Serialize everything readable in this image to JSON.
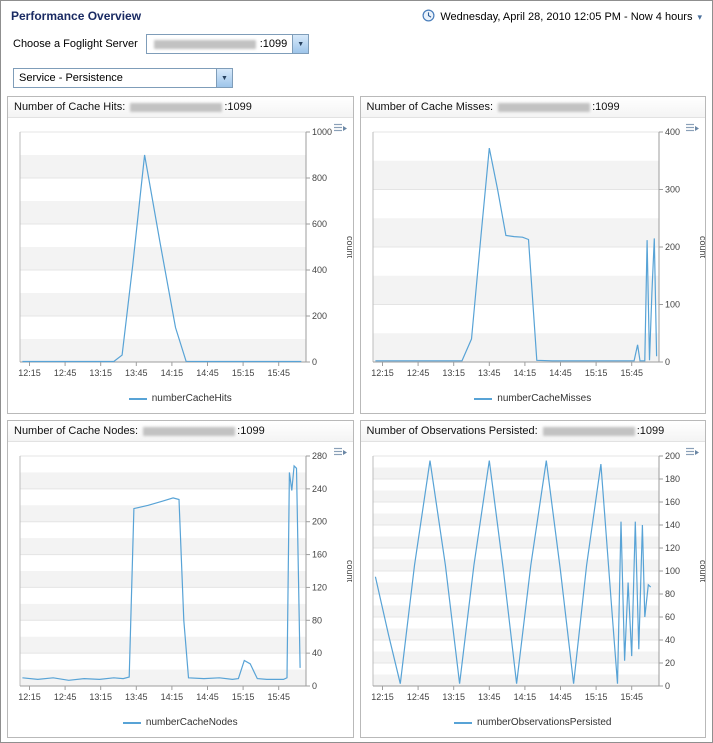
{
  "header": {
    "title": "Performance Overview",
    "time_range": "Wednesday, April 28, 2010 12:05 PM - Now 4 hours"
  },
  "server_selector": {
    "label": "Choose a Foglight Server",
    "value_suffix": ":1099"
  },
  "service_selector": {
    "value": "Service - Persistence"
  },
  "colors": {
    "line": "#58a3d6",
    "title": "#1a2b63"
  },
  "chart_data": [
    {
      "type": "line",
      "title_prefix": "Number of Cache Hits: ",
      "title_suffix": ":1099",
      "legend": "numberCacheHits",
      "ylabel": "count",
      "line_color": "#58a3d6",
      "x_domain": [
        727,
        968
      ],
      "y_domain": [
        0,
        1000
      ],
      "x_ticks": {
        "times": [
          735,
          765,
          795,
          825,
          855,
          885,
          915,
          945
        ],
        "labels": [
          "12:15",
          "12:45",
          "13:15",
          "13:45",
          "14:15",
          "14:45",
          "15:15",
          "15:45"
        ]
      },
      "y_ticks": [
        0,
        200,
        400,
        600,
        800,
        1000
      ],
      "points": [
        [
          729,
          2
        ],
        [
          745,
          2
        ],
        [
          762,
          2
        ],
        [
          778,
          2
        ],
        [
          795,
          2
        ],
        [
          806,
          2
        ],
        [
          813,
          30
        ],
        [
          822,
          420
        ],
        [
          832,
          900
        ],
        [
          845,
          520
        ],
        [
          858,
          150
        ],
        [
          867,
          3
        ],
        [
          880,
          2
        ],
        [
          895,
          2
        ],
        [
          910,
          2
        ],
        [
          925,
          2
        ],
        [
          945,
          2
        ],
        [
          964,
          2
        ]
      ]
    },
    {
      "type": "line",
      "title_prefix": "Number of Cache Misses: ",
      "title_suffix": ":1099",
      "legend": "numberCacheMisses",
      "ylabel": "count",
      "line_color": "#58a3d6",
      "x_domain": [
        727,
        968
      ],
      "y_domain": [
        0,
        400
      ],
      "x_ticks": {
        "times": [
          735,
          765,
          795,
          825,
          855,
          885,
          915,
          945
        ],
        "labels": [
          "12:15",
          "12:45",
          "13:15",
          "13:45",
          "14:15",
          "14:45",
          "15:15",
          "15:45"
        ]
      },
      "y_ticks": [
        0,
        100,
        200,
        300,
        400
      ],
      "points": [
        [
          729,
          2
        ],
        [
          750,
          2
        ],
        [
          770,
          2
        ],
        [
          790,
          2
        ],
        [
          802,
          2
        ],
        [
          810,
          40
        ],
        [
          818,
          220
        ],
        [
          825,
          372
        ],
        [
          832,
          300
        ],
        [
          839,
          220
        ],
        [
          846,
          218
        ],
        [
          853,
          217
        ],
        [
          858,
          213
        ],
        [
          865,
          3
        ],
        [
          878,
          2
        ],
        [
          892,
          2
        ],
        [
          906,
          2
        ],
        [
          920,
          2
        ],
        [
          934,
          2
        ],
        [
          943,
          2
        ],
        [
          947,
          2
        ],
        [
          950,
          30
        ],
        [
          952,
          2
        ],
        [
          956,
          2
        ],
        [
          958,
          212
        ],
        [
          960,
          3
        ],
        [
          962,
          120
        ],
        [
          964,
          215
        ],
        [
          966,
          10
        ]
      ]
    },
    {
      "type": "line",
      "title_prefix": "Number of Cache Nodes: ",
      "title_suffix": ":1099",
      "legend": "numberCacheNodes",
      "ylabel": "count",
      "line_color": "#58a3d6",
      "x_domain": [
        727,
        968
      ],
      "y_domain": [
        0,
        280
      ],
      "x_ticks": {
        "times": [
          735,
          765,
          795,
          825,
          855,
          885,
          915,
          945
        ],
        "labels": [
          "12:15",
          "12:45",
          "13:15",
          "13:45",
          "14:15",
          "14:45",
          "15:15",
          "15:45"
        ]
      },
      "y_ticks": [
        0,
        40,
        80,
        120,
        160,
        200,
        240,
        280
      ],
      "points": [
        [
          729,
          10
        ],
        [
          742,
          8
        ],
        [
          755,
          10
        ],
        [
          768,
          7
        ],
        [
          781,
          9
        ],
        [
          794,
          8
        ],
        [
          806,
          10
        ],
        [
          814,
          9
        ],
        [
          819,
          11
        ],
        [
          823,
          216
        ],
        [
          835,
          220
        ],
        [
          847,
          225
        ],
        [
          856,
          229
        ],
        [
          861,
          227
        ],
        [
          865,
          80
        ],
        [
          869,
          10
        ],
        [
          882,
          9
        ],
        [
          895,
          10
        ],
        [
          906,
          8
        ],
        [
          911,
          9
        ],
        [
          916,
          31
        ],
        [
          921,
          27
        ],
        [
          927,
          9
        ],
        [
          935,
          8
        ],
        [
          943,
          8
        ],
        [
          949,
          8
        ],
        [
          952,
          10
        ],
        [
          954,
          260
        ],
        [
          956,
          238
        ],
        [
          958,
          268
        ],
        [
          960,
          265
        ],
        [
          963,
          22
        ]
      ]
    },
    {
      "type": "line",
      "title_prefix": "Number of Observations Persisted: ",
      "title_suffix": ":1099",
      "legend": "numberObservationsPersisted",
      "ylabel": "count",
      "line_color": "#58a3d6",
      "x_domain": [
        727,
        968
      ],
      "y_domain": [
        0,
        200
      ],
      "x_ticks": {
        "times": [
          735,
          765,
          795,
          825,
          855,
          885,
          915,
          945
        ],
        "labels": [
          "12:15",
          "12:45",
          "13:15",
          "13:45",
          "14:15",
          "14:45",
          "15:15",
          "15:45"
        ]
      },
      "y_ticks": [
        0,
        20,
        40,
        60,
        80,
        100,
        120,
        140,
        160,
        180,
        200
      ],
      "points": [
        [
          729,
          95
        ],
        [
          740,
          45
        ],
        [
          750,
          2
        ],
        [
          762,
          105
        ],
        [
          775,
          196
        ],
        [
          788,
          105
        ],
        [
          800,
          2
        ],
        [
          812,
          105
        ],
        [
          825,
          196
        ],
        [
          837,
          100
        ],
        [
          848,
          2
        ],
        [
          860,
          105
        ],
        [
          873,
          196
        ],
        [
          885,
          100
        ],
        [
          896,
          2
        ],
        [
          907,
          105
        ],
        [
          919,
          193
        ],
        [
          928,
          70
        ],
        [
          933,
          2
        ],
        [
          936,
          143
        ],
        [
          939,
          22
        ],
        [
          942,
          90
        ],
        [
          945,
          26
        ],
        [
          948,
          143
        ],
        [
          951,
          32
        ],
        [
          954,
          140
        ],
        [
          956,
          60
        ],
        [
          959,
          88
        ],
        [
          961,
          86
        ]
      ]
    }
  ]
}
